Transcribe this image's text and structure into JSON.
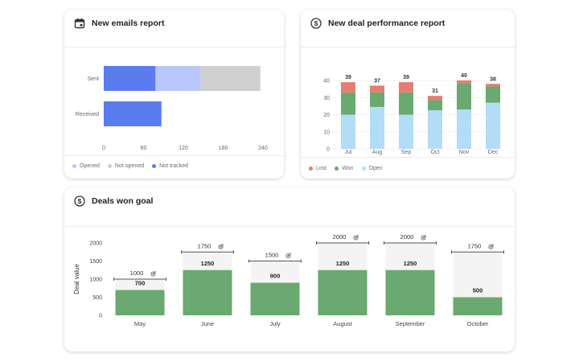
{
  "emails_card": {
    "title": "New emails report",
    "icon": "calendar-icon",
    "legend": [
      {
        "label": "Opened",
        "color": "#b9c8fb"
      },
      {
        "label": "Not opened",
        "color": "#cfcfcf"
      },
      {
        "label": "Not tracked",
        "color": "#5b7cee"
      }
    ]
  },
  "deals_card": {
    "title": "New deal performance report",
    "icon": "dollar-circle-icon",
    "legend": [
      {
        "label": "Lost",
        "color": "#e57d72"
      },
      {
        "label": "Won",
        "color": "#6aa96f"
      },
      {
        "label": "Open",
        "color": "#b3dcf7"
      }
    ]
  },
  "goal_card": {
    "title": "Deals won goal",
    "icon": "dollar-circle-icon"
  },
  "chart_data": [
    {
      "type": "bar",
      "orientation": "horizontal",
      "categories": [
        "Sent",
        "Received"
      ],
      "series": [
        {
          "name": "Not tracked",
          "values": [
            78,
            87
          ],
          "color": "#5b7cee"
        },
        {
          "name": "Opened",
          "values": [
            68,
            0
          ],
          "color": "#b9c8fb"
        },
        {
          "name": "Not opened",
          "values": [
            90,
            0
          ],
          "color": "#cfcfcf"
        }
      ],
      "xticks": [
        "0",
        "60",
        "120",
        "180",
        "240"
      ],
      "xlim": [
        0,
        240
      ]
    },
    {
      "type": "bar",
      "stacked": true,
      "categories": [
        "Jul",
        "Aug",
        "Sep",
        "Oct",
        "Nov",
        "Dec"
      ],
      "series": [
        {
          "name": "Open",
          "values": [
            20,
            24.5,
            20,
            22.5,
            23,
            27
          ],
          "color": "#b3dcf7"
        },
        {
          "name": "Won",
          "values": [
            13,
            8.5,
            13,
            6,
            15.5,
            9.5
          ],
          "color": "#6aa96f"
        },
        {
          "name": "Lost",
          "values": [
            6,
            4,
            6,
            2.5,
            1.5,
            1.5
          ],
          "color": "#e57d72"
        }
      ],
      "totals": [
        "39",
        "37",
        "39",
        "31",
        "40",
        "38"
      ],
      "yticks": [
        "0",
        "10",
        "20",
        "30",
        "40"
      ],
      "ylim": [
        0,
        40
      ]
    },
    {
      "type": "bar",
      "categories": [
        "May",
        "June",
        "July",
        "August",
        "September",
        "October"
      ],
      "values": [
        700,
        1250,
        900,
        1250,
        1250,
        500
      ],
      "value_labels": [
        "700",
        "1250",
        "900",
        "1250",
        "1250",
        "500"
      ],
      "goals": [
        1000,
        1750,
        1500,
        2000,
        2000,
        1750
      ],
      "goal_labels": [
        "1000",
        "1750",
        "1500",
        "2000",
        "2000",
        "1750"
      ],
      "ylabel": "Deal value",
      "yticks": [
        "0",
        "500",
        "1000",
        "1500",
        "2000"
      ],
      "ylim": [
        0,
        2000
      ]
    }
  ]
}
